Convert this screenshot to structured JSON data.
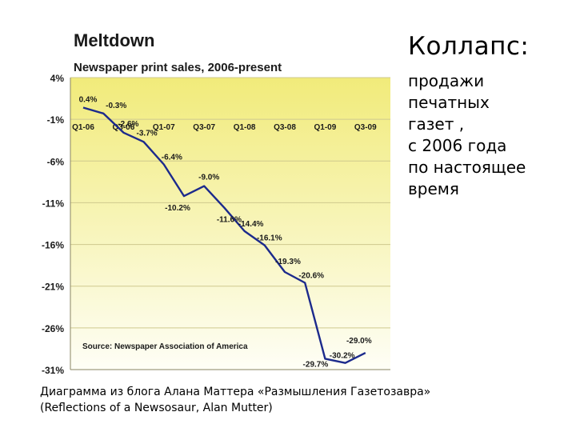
{
  "chart_data": {
    "type": "line",
    "title": "Meltdown",
    "subtitle": "Newspaper print sales, 2006-present",
    "source": "Source: Newspaper Association of America",
    "x_tick_labels": [
      "Q1-06",
      "Q3-06",
      "Q1-07",
      "Q3-07",
      "Q1-08",
      "Q3-08",
      "Q1-09",
      "Q3-09"
    ],
    "y_tick_labels": [
      "4%",
      "-1%",
      "-6%",
      "-11%",
      "-16%",
      "-21%",
      "-26%",
      "-31%"
    ],
    "ylim": [
      -31,
      4
    ],
    "y_ticks": [
      4,
      -1,
      -6,
      -11,
      -16,
      -21,
      -26,
      -31
    ],
    "grid": true,
    "series": [
      {
        "x": [
          "Q1-06",
          "Q2-06",
          "Q3-06",
          "Q4-06",
          "Q1-07",
          "Q2-07",
          "Q3-07",
          "Q4-07",
          "Q1-08",
          "Q2-08",
          "Q3-08",
          "Q4-08",
          "Q1-09",
          "Q2-09",
          "Q3-09"
        ],
        "values": [
          0.4,
          -0.3,
          -2.6,
          -3.7,
          -6.4,
          -10.2,
          -9.0,
          -11.6,
          -14.4,
          -16.1,
          -19.3,
          -20.6,
          -29.7,
          -30.2,
          -29.0
        ],
        "labels": [
          "0.4%",
          "-0.3%",
          "-2.6%",
          "-3.7%",
          "-6.4%",
          "-10.2%",
          "-9.0%",
          "-11.6%",
          "-14.4%",
          "-16.1%",
          "-19.3%",
          "-20.6%",
          "-29.7%",
          "-30.2%",
          "-29.0%"
        ]
      }
    ],
    "colors": {
      "line": "#1c2a8c",
      "band_top": "#f1eb7a",
      "band_bottom": "#fefef6",
      "grid": "#cfc98e",
      "text": "#1a1a1a"
    }
  },
  "side_text": {
    "title": "Коллапс:",
    "lines": [
      "продажи",
      "печатных",
      "газет ,",
      "с 2006 года",
      "по настоящее",
      "время"
    ]
  },
  "caption": {
    "line1": "Диаграмма из блога Алана Маттера «Размышления Газетозавра»",
    "line2": "(Reflections of a Newsosaur, Alan Mutter)"
  }
}
